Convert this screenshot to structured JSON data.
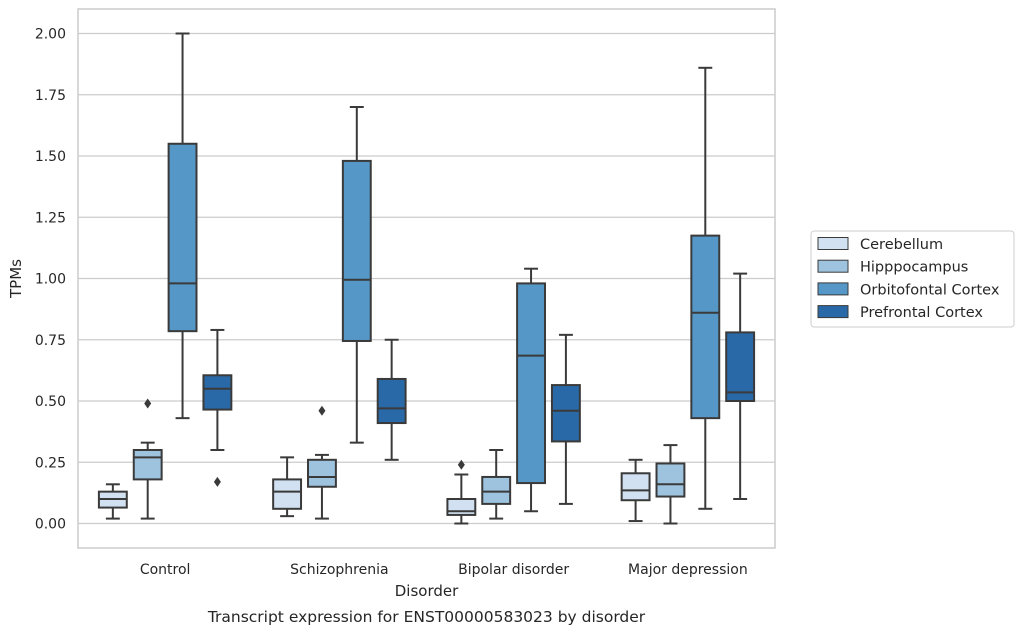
{
  "chart_data": {
    "type": "boxplot",
    "caption": "Transcript expression for ENST00000583023 by disorder",
    "xlabel": "Disorder",
    "ylabel": "TPMs",
    "ylim": [
      -0.1,
      2.1
    ],
    "yticks": [
      0.0,
      0.25,
      0.5,
      0.75,
      1.0,
      1.25,
      1.5,
      1.75,
      2.0
    ],
    "ytick_labels": [
      "0.00",
      "0.25",
      "0.50",
      "0.75",
      "1.00",
      "1.25",
      "1.50",
      "1.75",
      "2.00"
    ],
    "grid": true,
    "legend_position": "right",
    "categories": [
      "Control",
      "Schizophrenia",
      "Bipolar disorder",
      "Major depression"
    ],
    "series": [
      {
        "name": "Cerebellum",
        "color": "#d1e1f1",
        "boxes": [
          {
            "whislo": 0.02,
            "q1": 0.065,
            "med": 0.1,
            "q3": 0.13,
            "whishi": 0.16,
            "fliers": []
          },
          {
            "whislo": 0.03,
            "q1": 0.06,
            "med": 0.13,
            "q3": 0.18,
            "whishi": 0.27,
            "fliers": []
          },
          {
            "whislo": 0.0,
            "q1": 0.035,
            "med": 0.05,
            "q3": 0.1,
            "whishi": 0.2,
            "fliers": [
              0.24
            ]
          },
          {
            "whislo": 0.01,
            "q1": 0.095,
            "med": 0.135,
            "q3": 0.205,
            "whishi": 0.26,
            "fliers": []
          }
        ]
      },
      {
        "name": "Hipppocampus",
        "color": "#9dc3df",
        "boxes": [
          {
            "whislo": 0.02,
            "q1": 0.18,
            "med": 0.27,
            "q3": 0.3,
            "whishi": 0.33,
            "fliers": [
              0.49
            ]
          },
          {
            "whislo": 0.02,
            "q1": 0.15,
            "med": 0.19,
            "q3": 0.26,
            "whishi": 0.28,
            "fliers": [
              0.46
            ]
          },
          {
            "whislo": 0.02,
            "q1": 0.08,
            "med": 0.13,
            "q3": 0.19,
            "whishi": 0.3,
            "fliers": []
          },
          {
            "whislo": 0.0,
            "q1": 0.11,
            "med": 0.16,
            "q3": 0.245,
            "whishi": 0.32,
            "fliers": []
          }
        ]
      },
      {
        "name": "Orbitofontal Cortex",
        "color": "#5597c7",
        "boxes": [
          {
            "whislo": 0.43,
            "q1": 0.785,
            "med": 0.98,
            "q3": 1.55,
            "whishi": 2.0,
            "fliers": []
          },
          {
            "whislo": 0.33,
            "q1": 0.745,
            "med": 0.995,
            "q3": 1.48,
            "whishi": 1.7,
            "fliers": []
          },
          {
            "whislo": 0.05,
            "q1": 0.165,
            "med": 0.685,
            "q3": 0.98,
            "whishi": 1.04,
            "fliers": []
          },
          {
            "whislo": 0.06,
            "q1": 0.43,
            "med": 0.86,
            "q3": 1.175,
            "whishi": 1.86,
            "fliers": []
          }
        ]
      },
      {
        "name": "Prefrontal Cortex",
        "color": "#2a69a7",
        "boxes": [
          {
            "whislo": 0.3,
            "q1": 0.465,
            "med": 0.55,
            "q3": 0.605,
            "whishi": 0.79,
            "fliers": [
              0.17
            ]
          },
          {
            "whislo": 0.26,
            "q1": 0.41,
            "med": 0.47,
            "q3": 0.59,
            "whishi": 0.75,
            "fliers": []
          },
          {
            "whislo": 0.08,
            "q1": 0.335,
            "med": 0.46,
            "q3": 0.565,
            "whishi": 0.77,
            "fliers": []
          },
          {
            "whislo": 0.1,
            "q1": 0.5,
            "med": 0.535,
            "q3": 0.78,
            "whishi": 1.02,
            "fliers": []
          }
        ]
      }
    ]
  }
}
